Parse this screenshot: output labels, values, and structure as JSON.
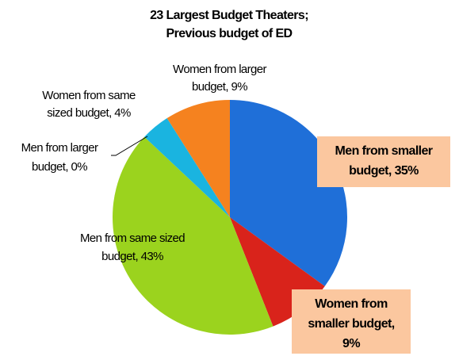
{
  "chart_data": {
    "type": "pie",
    "title": [
      "23 Largest Budget Theaters;",
      "Previous budget of ED"
    ],
    "values": [
      35,
      9,
      43,
      0,
      4,
      9
    ],
    "value_labels": [
      [
        "Men from smaller",
        "budget, 35%"
      ],
      [
        "Women from",
        "smaller budget,",
        "9%"
      ],
      [
        "Men from same sized",
        "budget, 43%"
      ],
      [
        "Men from larger",
        "budget, 0%"
      ],
      [
        "Women from same",
        "sized budget, 4%"
      ],
      [
        "Women from larger",
        "budget, 9%"
      ]
    ],
    "colors": [
      "#1f6fd8",
      "#d9231b",
      "#9bd31e",
      "#1ab4e0",
      "#d9231b",
      "#f5821f"
    ],
    "start_angle": 0,
    "direction": "clockwise"
  }
}
